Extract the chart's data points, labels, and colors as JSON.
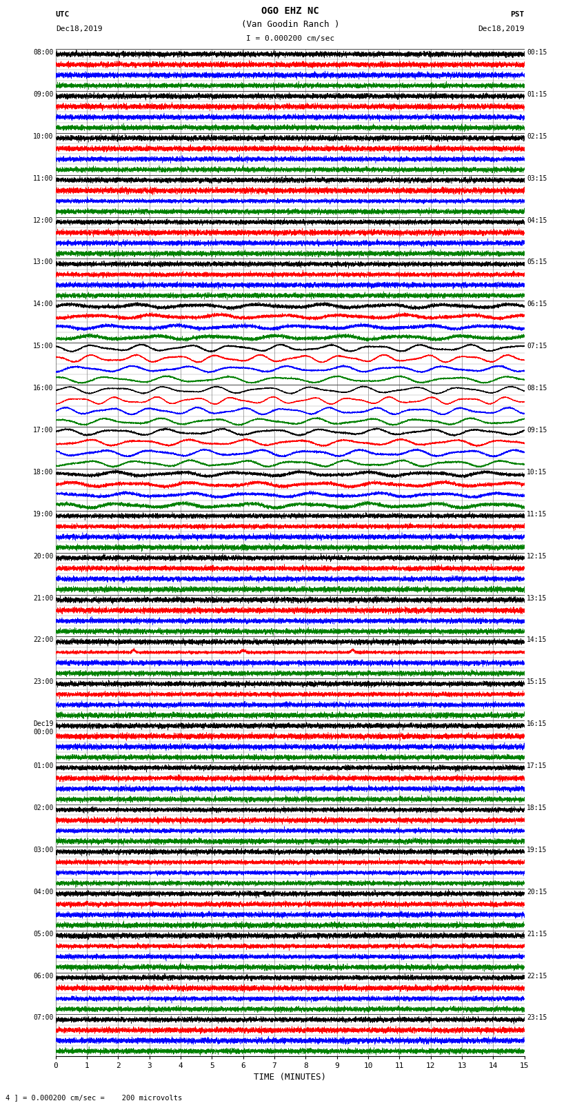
{
  "title_line1": "OGO EHZ NC",
  "title_line2": "(Van Goodin Ranch )",
  "title_line3": "I = 0.000200 cm/sec",
  "left_header_line1": "UTC",
  "left_header_line2": "Dec18,2019",
  "right_header_line1": "PST",
  "right_header_line2": "Dec18,2019",
  "xlabel": "TIME (MINUTES)",
  "footer": "4 ] = 0.000200 cm/sec =    200 microvolts",
  "utc_labels": [
    "08:00",
    "09:00",
    "10:00",
    "11:00",
    "12:00",
    "13:00",
    "14:00",
    "15:00",
    "16:00",
    "17:00",
    "18:00",
    "19:00",
    "20:00",
    "21:00",
    "22:00",
    "23:00",
    "Dec19\n00:00",
    "01:00",
    "02:00",
    "03:00",
    "04:00",
    "05:00",
    "06:00",
    "07:00"
  ],
  "pst_labels": [
    "00:15",
    "01:15",
    "02:15",
    "03:15",
    "04:15",
    "05:15",
    "06:15",
    "07:15",
    "08:15",
    "09:15",
    "10:15",
    "11:15",
    "12:15",
    "13:15",
    "14:15",
    "15:15",
    "16:15",
    "17:15",
    "18:15",
    "19:15",
    "20:15",
    "21:15",
    "22:15",
    "23:15"
  ],
  "colors": [
    "black",
    "red",
    "blue",
    "green"
  ],
  "n_hours": 24,
  "traces_per_hour": 4,
  "n_pts": 9000,
  "time_min": 0,
  "time_max": 15,
  "bg_color": "white",
  "grid_color": "#888888",
  "hour_line_color": "#444444"
}
